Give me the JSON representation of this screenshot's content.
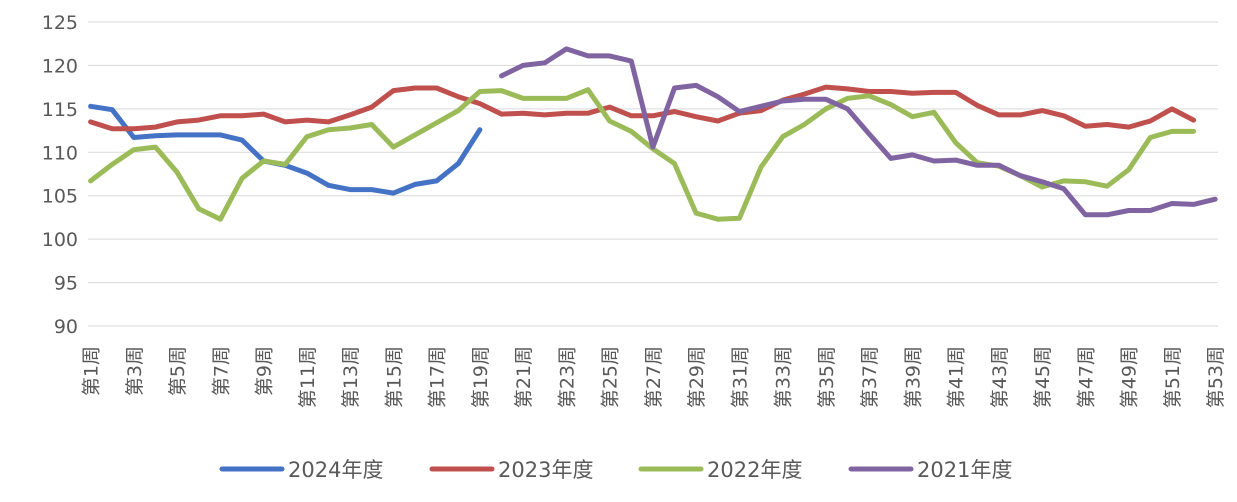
{
  "chart_data": {
    "type": "line",
    "title": "",
    "xlabel": "",
    "ylabel": "",
    "ylim": [
      90,
      125
    ],
    "yticks": [
      90,
      95,
      100,
      105,
      110,
      115,
      120,
      125
    ],
    "grid": true,
    "legend": "bottom",
    "categories": [
      "第1周",
      "第2周",
      "第3周",
      "第4周",
      "第5周",
      "第6周",
      "第7周",
      "第8周",
      "第9周",
      "第10周",
      "第11周",
      "第12周",
      "第13周",
      "第14周",
      "第15周",
      "第16周",
      "第17周",
      "第18周",
      "第19周",
      "第20周",
      "第21周",
      "第22周",
      "第23周",
      "第24周",
      "第25周",
      "第26周",
      "第27周",
      "第28周",
      "第29周",
      "第30周",
      "第31周",
      "第32周",
      "第33周",
      "第34周",
      "第35周",
      "第36周",
      "第37周",
      "第38周",
      "第39周",
      "第40周",
      "第41周",
      "第42周",
      "第43周",
      "第44周",
      "第45周",
      "第46周",
      "第47周",
      "第48周",
      "第49周",
      "第50周",
      "第51周",
      "第52周",
      "第53周"
    ],
    "xtick_labels": [
      "第1周",
      "第3周",
      "第5周",
      "第7周",
      "第9周",
      "第11周",
      "第13周",
      "第15周",
      "第17周",
      "第19周",
      "第21周",
      "第23周",
      "第25周",
      "第27周",
      "第29周",
      "第31周",
      "第33周",
      "第35周",
      "第37周",
      "第39周",
      "第41周",
      "第43周",
      "第45周",
      "第47周",
      "第49周",
      "第51周",
      "第53周"
    ],
    "series": [
      {
        "name": "2024年度",
        "color": "#4472C4",
        "values": [
          115.3,
          114.9,
          111.7,
          111.9,
          112.0,
          112.0,
          112.0,
          111.4,
          109.0,
          108.5,
          107.6,
          106.2,
          105.7,
          105.7,
          105.3,
          106.3,
          106.7,
          108.7,
          112.6,
          null,
          null,
          null,
          null,
          null,
          null,
          null,
          null,
          null,
          null,
          null,
          null,
          null,
          null,
          null,
          null,
          null,
          null,
          null,
          null,
          null,
          null,
          null,
          null,
          null,
          null,
          null,
          null,
          null,
          null,
          null,
          null,
          null,
          null
        ]
      },
      {
        "name": "2023年度",
        "color": "#C0504D",
        "values": [
          113.5,
          112.7,
          112.7,
          112.9,
          113.5,
          113.7,
          114.2,
          114.2,
          114.4,
          113.5,
          113.7,
          113.5,
          114.3,
          115.2,
          117.1,
          117.4,
          117.4,
          116.4,
          115.6,
          114.4,
          114.5,
          114.3,
          114.5,
          114.5,
          115.2,
          114.2,
          114.2,
          114.7,
          114.1,
          113.6,
          114.5,
          114.8,
          116.0,
          116.7,
          117.5,
          117.3,
          117.0,
          117.0,
          116.8,
          116.9,
          116.9,
          115.4,
          114.3,
          114.3,
          114.8,
          114.2,
          113.0,
          113.2,
          112.9,
          113.6,
          115.0,
          113.7,
          null
        ]
      },
      {
        "name": "2022年度",
        "color": "#9BBB59",
        "values": [
          106.7,
          108.6,
          110.3,
          110.6,
          107.7,
          103.5,
          102.3,
          107.0,
          109.0,
          108.6,
          111.8,
          112.6,
          112.8,
          113.2,
          110.6,
          112.0,
          113.4,
          114.8,
          117.0,
          117.1,
          116.2,
          116.2,
          116.2,
          117.2,
          113.6,
          112.4,
          110.4,
          108.7,
          103.0,
          102.3,
          102.4,
          108.3,
          111.8,
          113.2,
          115.0,
          116.2,
          116.5,
          115.5,
          114.1,
          114.6,
          111.1,
          108.8,
          108.4,
          107.3,
          106.0,
          106.7,
          106.6,
          106.1,
          108.0,
          111.7,
          112.4,
          112.4,
          null
        ]
      },
      {
        "name": "2021年度",
        "color": "#8064A2",
        "values": [
          null,
          null,
          null,
          null,
          null,
          null,
          null,
          null,
          null,
          null,
          null,
          null,
          null,
          null,
          null,
          null,
          null,
          null,
          null,
          118.8,
          120.0,
          120.3,
          121.9,
          121.1,
          121.1,
          120.5,
          110.6,
          117.4,
          117.7,
          116.4,
          114.7,
          115.3,
          115.9,
          116.1,
          116.1,
          115.0,
          112.1,
          109.3,
          109.7,
          109.0,
          109.1,
          108.5,
          108.5,
          107.3,
          106.6,
          105.8,
          102.8,
          102.8,
          103.3,
          103.3,
          104.1,
          104.0,
          104.6
        ]
      }
    ]
  }
}
